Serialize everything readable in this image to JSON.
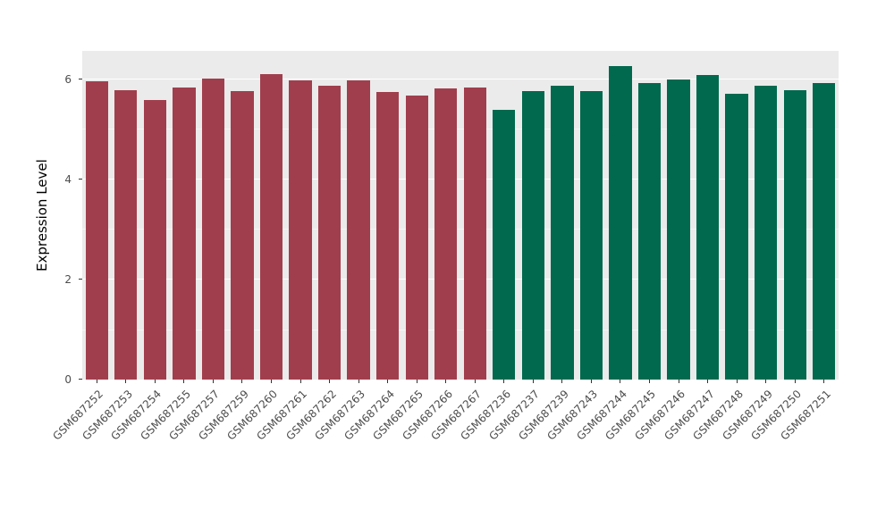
{
  "figure": {
    "background": "#FFFFFF",
    "panel_background": "#EBEBEB",
    "grid_color": "#FFFFFF",
    "axis_text_color": "#4D4D4D"
  },
  "chart_data": {
    "type": "bar",
    "title": "",
    "xlabel": "",
    "ylabel": "Expression Level",
    "ylim": [
      0,
      6.57
    ],
    "yticks": [
      0,
      2,
      4,
      6
    ],
    "minor_ticks": [
      1,
      3,
      5
    ],
    "grid": true,
    "legend": "none",
    "categories": [
      "GSM687252",
      "GSM687253",
      "GSM687254",
      "GSM687255",
      "GSM687257",
      "GSM687259",
      "GSM687260",
      "GSM687261",
      "GSM687262",
      "GSM687263",
      "GSM687264",
      "GSM687265",
      "GSM687266",
      "GSM687267",
      "GSM687236",
      "GSM687237",
      "GSM687239",
      "GSM687243",
      "GSM687244",
      "GSM687245",
      "GSM687246",
      "GSM687247",
      "GSM687248",
      "GSM687249",
      "GSM687250",
      "GSM687251"
    ],
    "values": [
      5.97,
      5.79,
      5.59,
      5.84,
      6.01,
      5.77,
      6.11,
      5.99,
      5.88,
      5.99,
      5.75,
      5.68,
      5.82,
      5.84,
      5.39,
      5.77,
      5.88,
      5.77,
      6.27,
      5.93,
      6.0,
      6.08,
      5.72,
      5.88,
      5.79,
      5.93
    ],
    "bar_colors": [
      "#A13E4D",
      "#A13E4D",
      "#A13E4D",
      "#A13E4D",
      "#A13E4D",
      "#A13E4D",
      "#A13E4D",
      "#A13E4D",
      "#A13E4D",
      "#A13E4D",
      "#A13E4D",
      "#A13E4D",
      "#A13E4D",
      "#A13E4D",
      "#00694E",
      "#00694E",
      "#00694E",
      "#00694E",
      "#00694E",
      "#00694E",
      "#00694E",
      "#00694E",
      "#00694E",
      "#00694E",
      "#00694E",
      "#00694E"
    ],
    "group_colors": {
      "left_group": "#A13E4D",
      "right_group": "#00694E"
    }
  }
}
